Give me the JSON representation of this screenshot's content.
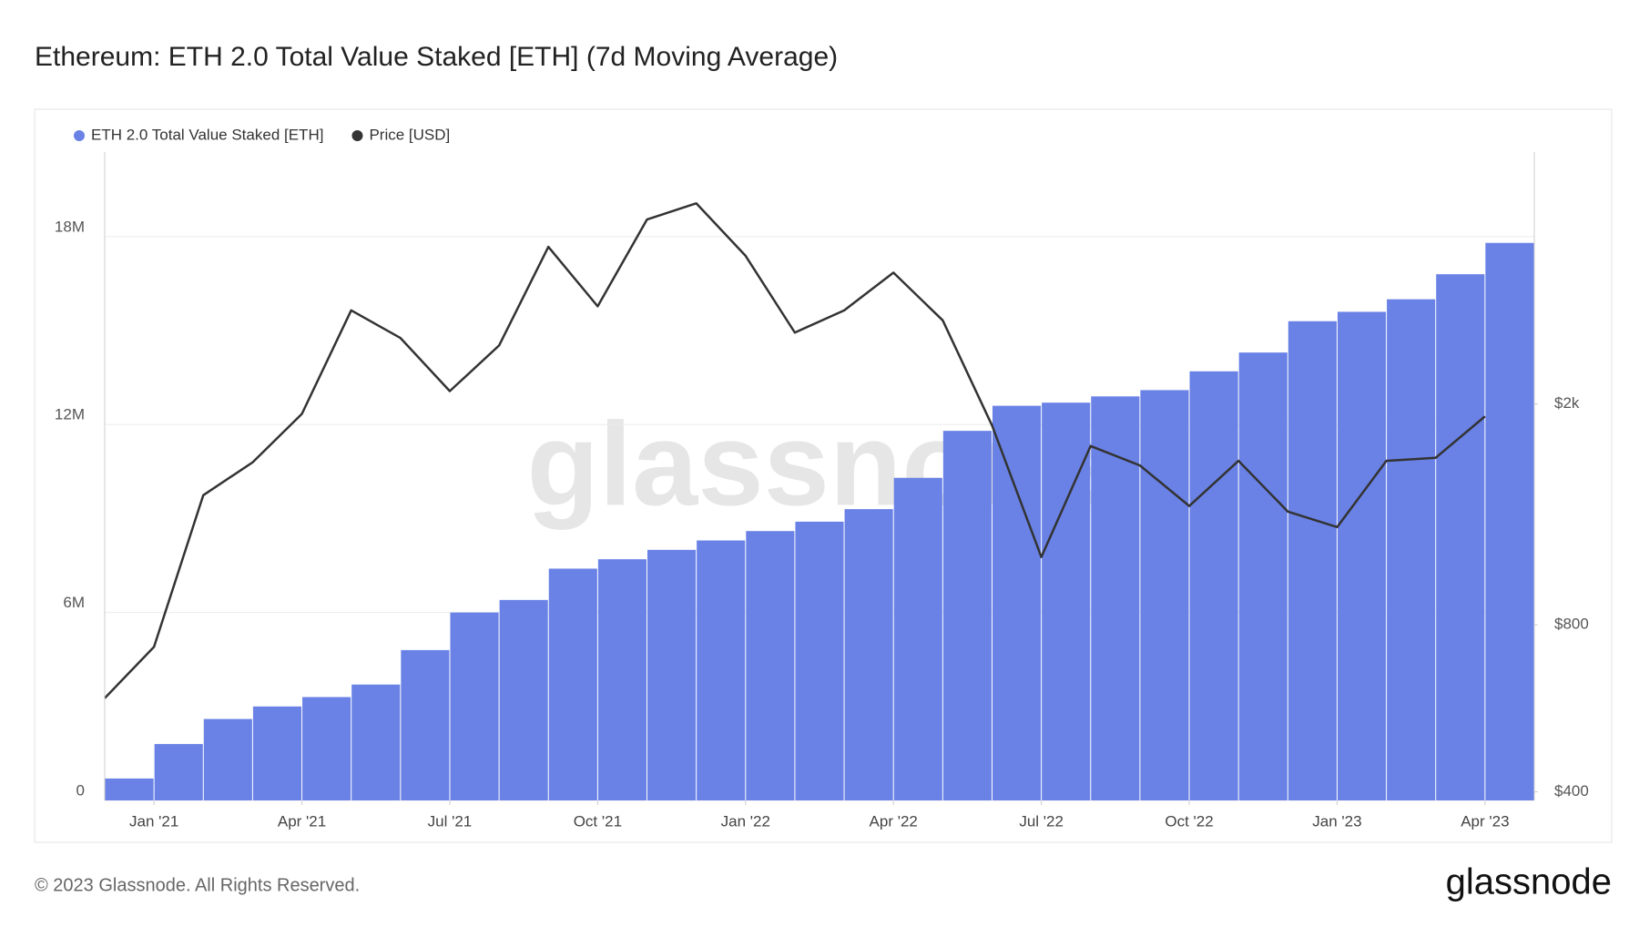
{
  "chart_data": {
    "type": "combo",
    "title": "Ethereum: ETH 2.0 Total Value Staked [ETH] (7d Moving Average)",
    "x": [
      "2020-12",
      "2021-01",
      "2021-02",
      "2021-03",
      "2021-04",
      "2021-05",
      "2021-06",
      "2021-07",
      "2021-08",
      "2021-09",
      "2021-10",
      "2021-11",
      "2021-12",
      "2022-01",
      "2022-02",
      "2022-03",
      "2022-04",
      "2022-05",
      "2022-06",
      "2022-07",
      "2022-08",
      "2022-09",
      "2022-10",
      "2022-11",
      "2022-12",
      "2023-01",
      "2023-02",
      "2023-03",
      "2023-04"
    ],
    "series": [
      {
        "name": "ETH 2.0 Total Value Staked [ETH]",
        "type": "bar",
        "color": "#6a82e6",
        "values": [
          700000,
          1800000,
          2600000,
          3000000,
          3300000,
          3700000,
          4800000,
          6000000,
          6400000,
          7400000,
          7700000,
          8000000,
          8300000,
          8600000,
          8900000,
          9300000,
          10300000,
          11800000,
          12600000,
          12700000,
          12900000,
          13100000,
          13700000,
          14300000,
          15300000,
          15600000,
          16000000,
          16800000,
          17800000
        ]
      },
      {
        "name": "Price [USD]",
        "type": "line",
        "color": "#333333",
        "axis": "y2",
        "values": [
          590,
          730,
          1370,
          1570,
          1920,
          2950,
          2630,
          2110,
          2550,
          3840,
          3000,
          4300,
          4600,
          3700,
          2690,
          2950,
          3450,
          2830,
          1830,
          1060,
          1680,
          1550,
          1310,
          1580,
          1280,
          1200,
          1580,
          1600,
          1900
        ]
      }
    ],
    "xlim": [
      "2020-12",
      "2023-05"
    ],
    "xticks": [
      {
        "value": "2021-01",
        "label": "Jan '21"
      },
      {
        "value": "2021-04",
        "label": "Apr '21"
      },
      {
        "value": "2021-07",
        "label": "Jul '21"
      },
      {
        "value": "2021-10",
        "label": "Oct '21"
      },
      {
        "value": "2022-01",
        "label": "Jan '22"
      },
      {
        "value": "2022-04",
        "label": "Apr '22"
      },
      {
        "value": "2022-07",
        "label": "Jul '22"
      },
      {
        "value": "2022-10",
        "label": "Oct '22"
      },
      {
        "value": "2023-01",
        "label": "Jan '23"
      },
      {
        "value": "2023-04",
        "label": "Apr '23"
      }
    ],
    "ylim": [
      0,
      20700000
    ],
    "yticks": [
      0,
      {
        "value": 6000000,
        "label": "6M"
      },
      {
        "value": 12000000,
        "label": "12M"
      },
      {
        "value": 18000000,
        "label": "18M"
      }
    ],
    "y2lim": [
      386,
      5690
    ],
    "y2ticks": [
      {
        "value": 400,
        "label": "$400"
      },
      {
        "value": 800,
        "label": "$800"
      },
      {
        "value": 2000,
        "label": "$2k"
      }
    ],
    "y2log": true,
    "grid": true,
    "legend": "top-left"
  },
  "watermark": "glassnode",
  "footer": "© 2023 Glassnode. All Rights Reserved.",
  "brand": "glassnode"
}
